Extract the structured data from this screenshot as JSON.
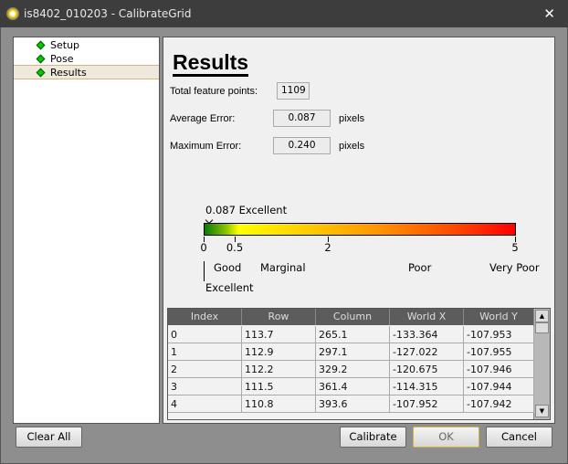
{
  "window": {
    "title": "is8402_010203 - CalibrateGrid",
    "close_icon": "close-icon"
  },
  "nav": {
    "items": [
      {
        "label": "Setup"
      },
      {
        "label": "Pose"
      },
      {
        "label": "Results",
        "selected": true
      }
    ],
    "status_color": "#00cc00"
  },
  "results": {
    "title": "Results",
    "total_label": "Total feature points:",
    "total_value": "1109",
    "avg_label": "Average Error:",
    "avg_value": "0.087",
    "avg_unit": "pixels",
    "max_label": "Maximum Error:",
    "max_value": "0.240",
    "max_unit": "pixels",
    "scale": {
      "marker_label": "0.087 Excellent",
      "marker_value": 0.087,
      "ticks": [
        {
          "label": "0",
          "value": 0
        },
        {
          "label": "0.5",
          "value": 0.5
        },
        {
          "label": "2",
          "value": 2
        },
        {
          "label": "5",
          "value": 5
        }
      ],
      "categories": {
        "excellent": "Excellent",
        "good": "Good",
        "marginal": "Marginal",
        "poor": "Poor",
        "very_poor": "Very Poor"
      }
    }
  },
  "table": {
    "columns": [
      "Index",
      "Row",
      "Column",
      "World X",
      "World Y"
    ],
    "rows": [
      [
        "0",
        "113.7",
        "265.1",
        "-133.364",
        "-107.953"
      ],
      [
        "1",
        "112.9",
        "297.1",
        "-127.022",
        "-107.955"
      ],
      [
        "2",
        "112.2",
        "329.2",
        "-120.675",
        "-107.946"
      ],
      [
        "3",
        "111.5",
        "361.4",
        "-114.315",
        "-107.944"
      ],
      [
        "4",
        "110.8",
        "393.6",
        "-107.952",
        "-107.942"
      ]
    ]
  },
  "buttons": {
    "clear_all": "Clear All",
    "calibrate": "Calibrate",
    "ok": "OK",
    "cancel": "Cancel"
  }
}
